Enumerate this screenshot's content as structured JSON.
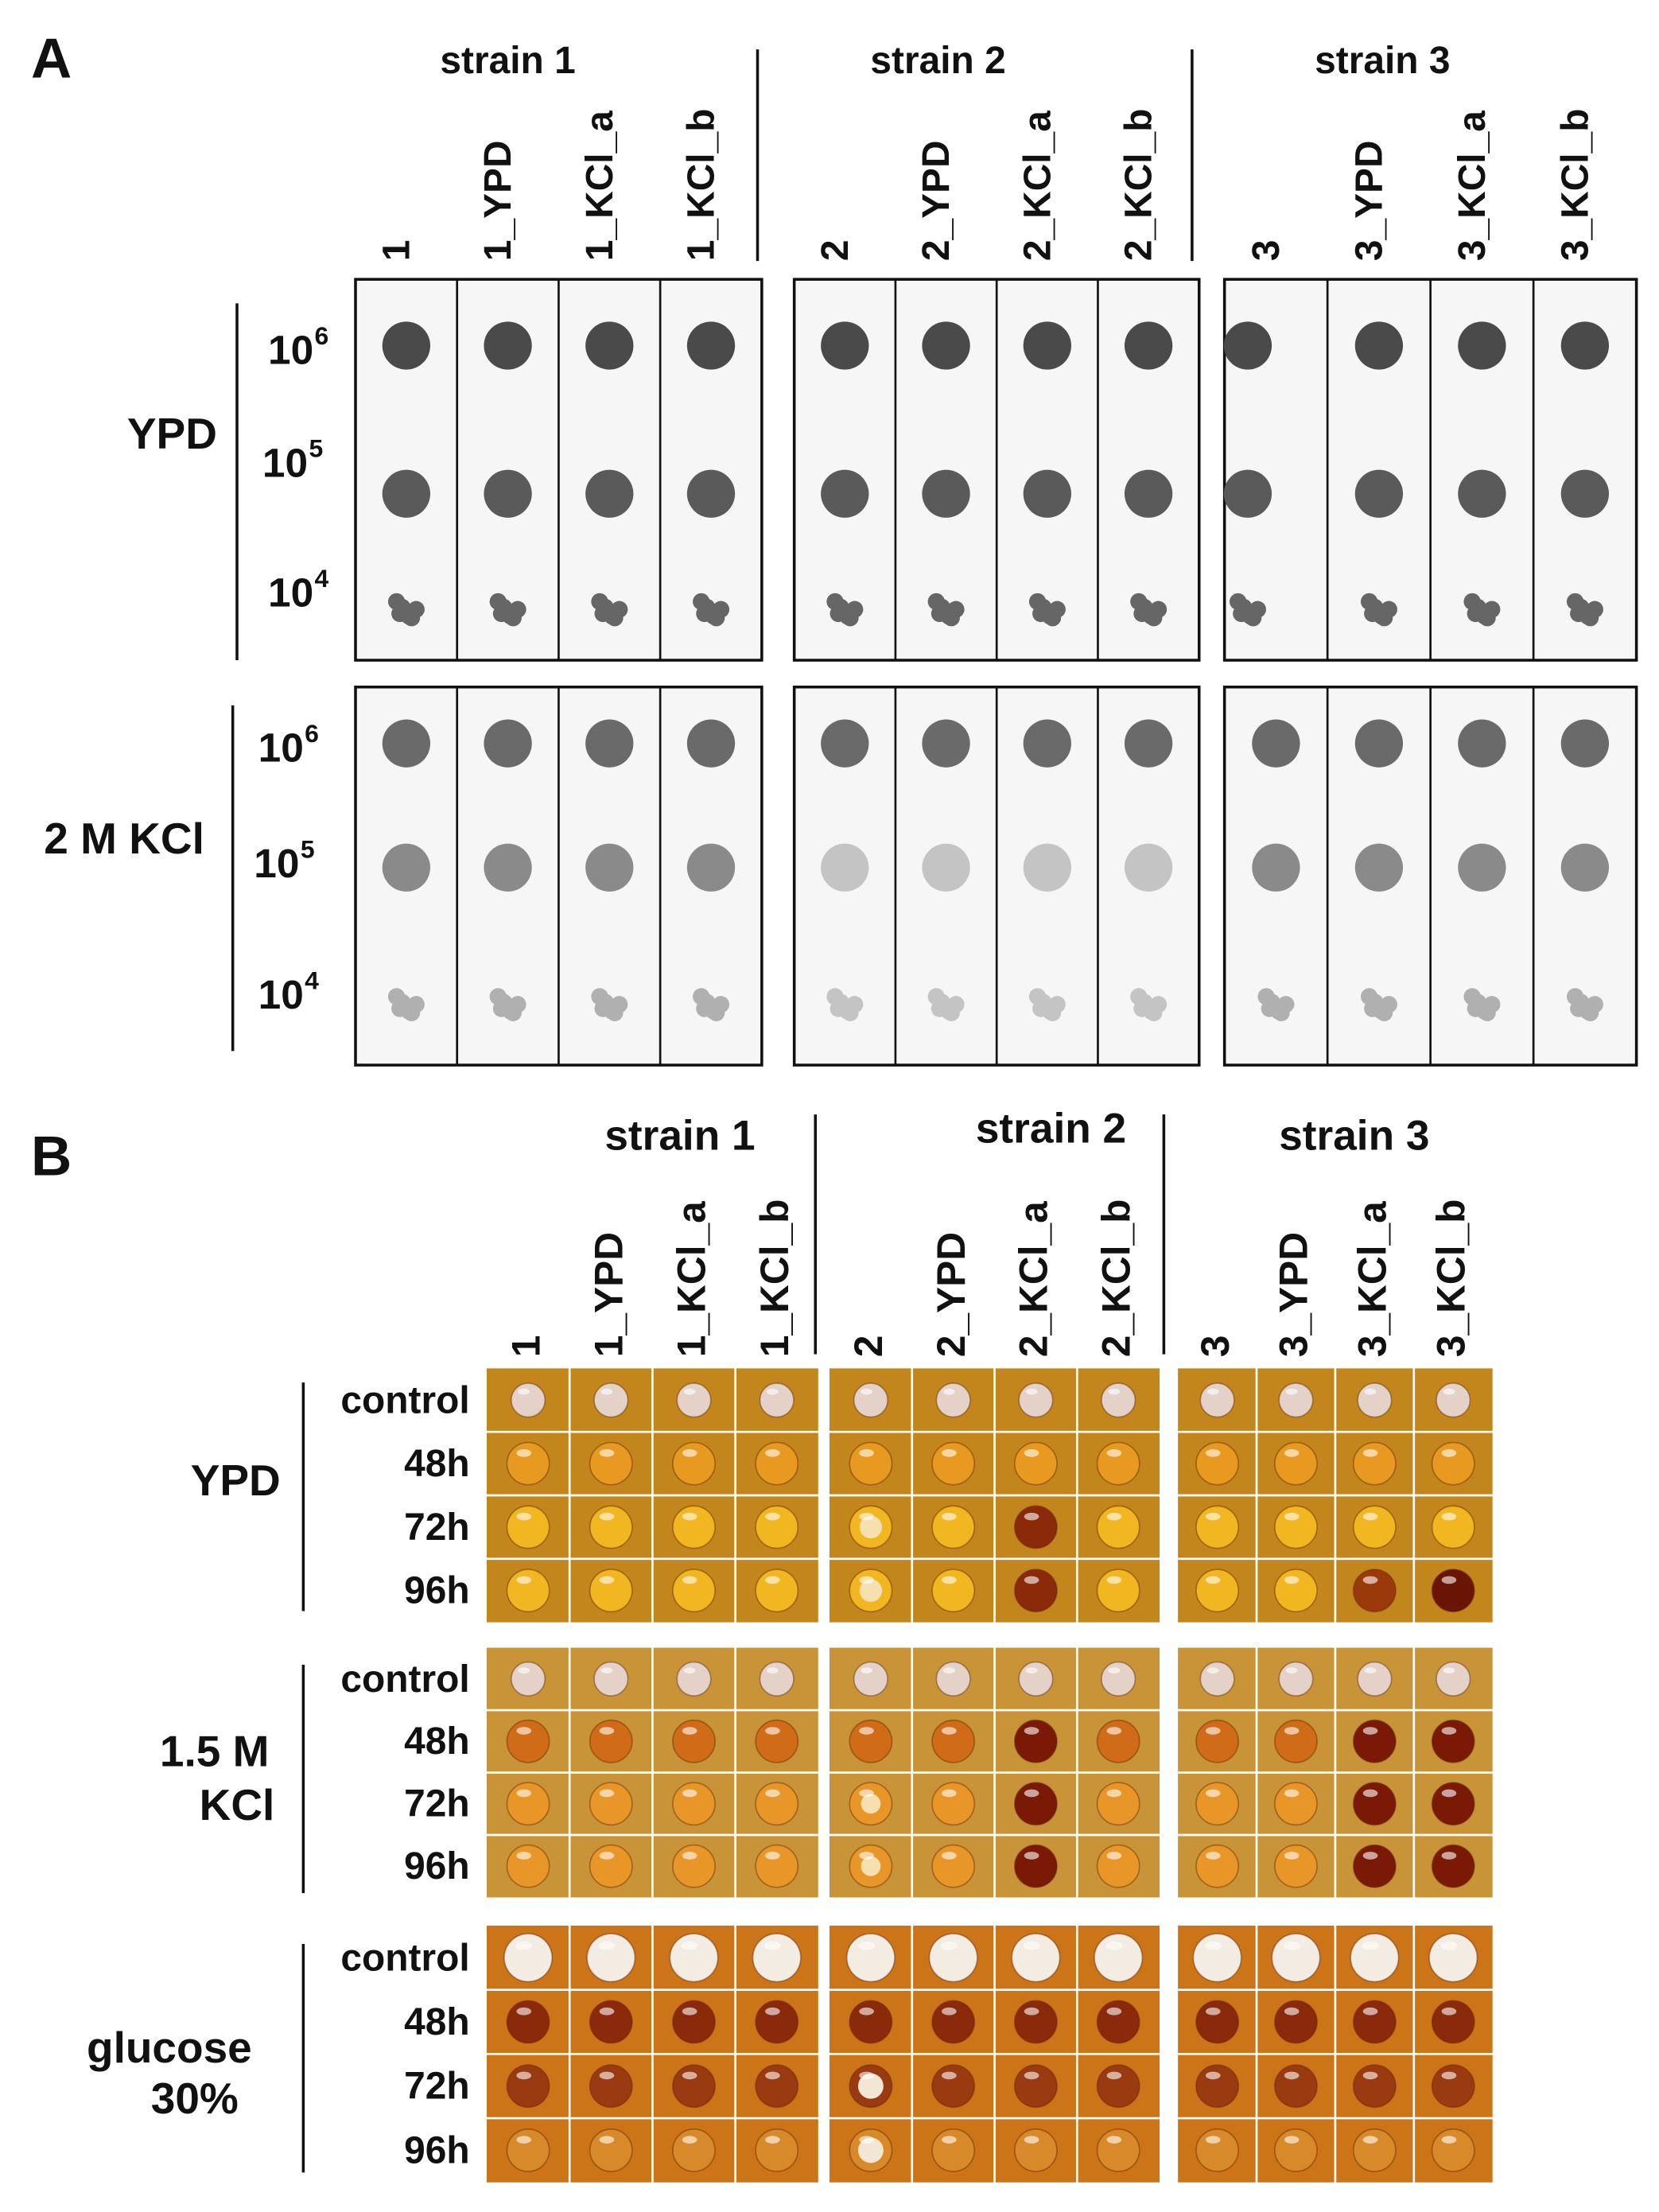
{
  "panel_a": {
    "label": "A",
    "strains": [
      {
        "name": "strain 1",
        "columns": [
          "1",
          "1_YPD",
          "1_KCl_a",
          "1_KCl_b"
        ]
      },
      {
        "name": "strain 2",
        "columns": [
          "2",
          "2_YPD",
          "2_KCl_a",
          "2_KCl_b"
        ]
      },
      {
        "name": "strain 3",
        "columns": [
          "3",
          "3_YPD",
          "3_KCl_a",
          "3_KCl_b"
        ]
      }
    ],
    "conditions": [
      {
        "name": "YPD",
        "dilutions": [
          {
            "base": "10",
            "exponent": "6"
          },
          {
            "base": "10",
            "exponent": "5"
          },
          {
            "base": "10",
            "exponent": "4"
          }
        ]
      },
      {
        "name": "2 M KCl",
        "dilutions": [
          {
            "base": "10",
            "exponent": "6"
          },
          {
            "base": "10",
            "exponent": "5"
          },
          {
            "base": "10",
            "exponent": "4"
          }
        ]
      }
    ]
  },
  "panel_b": {
    "label": "B",
    "strains": [
      {
        "name": "strain 1",
        "columns": [
          "1",
          "1_YPD",
          "1_KCl_a",
          "1_KCl_b"
        ]
      },
      {
        "name": "strain 2",
        "columns": [
          "2",
          "2_YPD",
          "2_KCl_a",
          "2_KCl_b"
        ]
      },
      {
        "name": "strain 3",
        "columns": [
          "3",
          "3_YPD",
          "3_KCl_a",
          "3_KCl_b"
        ]
      }
    ],
    "conditions": [
      {
        "name": [
          "YPD"
        ],
        "times": [
          "control",
          "48h",
          "72h",
          "96h"
        ]
      },
      {
        "name": [
          "1.5 M",
          "KCl"
        ],
        "times": [
          "control",
          "48h",
          "72h",
          "96h"
        ]
      },
      {
        "name": [
          "glucose",
          "30%"
        ],
        "times": [
          "control",
          "48h",
          "72h",
          "96h"
        ]
      }
    ]
  }
}
